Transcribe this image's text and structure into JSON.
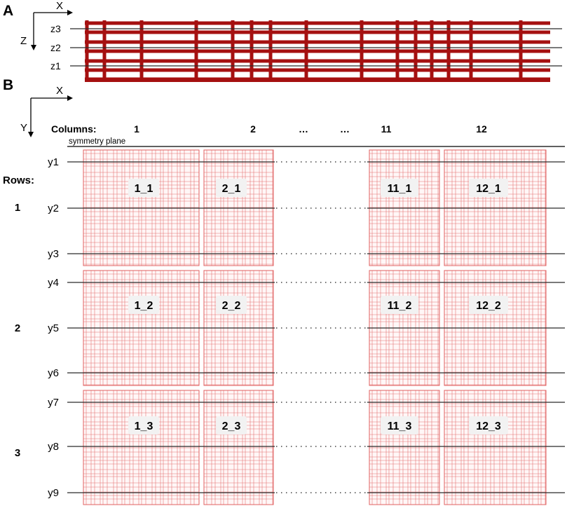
{
  "panel_a": {
    "label": "A",
    "axis_x": "X",
    "axis_z": "Z",
    "z_levels": [
      "z3",
      "z2",
      "z1"
    ],
    "bar_color": "#a51010"
  },
  "panel_b": {
    "label": "B",
    "axis_x": "X",
    "axis_y": "Y",
    "columns_title": "Columns:",
    "column_labels": [
      "1",
      "2",
      "…",
      "…",
      "11",
      "12"
    ],
    "symmetry_label": "symmetry plane",
    "rows_title": "Rows:",
    "row_labels": [
      "1",
      "2",
      "3"
    ],
    "y_levels": [
      "y1",
      "y2",
      "y3",
      "y4",
      "y5",
      "y6",
      "y7",
      "y8",
      "y9"
    ],
    "cells": [
      [
        "1_1",
        "2_1",
        "11_1",
        "12_1"
      ],
      [
        "1_2",
        "2_2",
        "11_2",
        "12_2"
      ],
      [
        "1_3",
        "2_3",
        "11_3",
        "12_3"
      ]
    ],
    "grid_color": "#e06060"
  }
}
